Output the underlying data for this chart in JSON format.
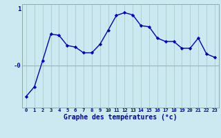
{
  "x": [
    0,
    1,
    2,
    3,
    4,
    5,
    6,
    7,
    8,
    9,
    10,
    11,
    12,
    13,
    14,
    15,
    16,
    17,
    18,
    19,
    20,
    21,
    22,
    23
  ],
  "y": [
    -0.55,
    -0.38,
    0.08,
    0.55,
    0.53,
    0.35,
    0.32,
    0.22,
    0.22,
    0.37,
    0.62,
    0.88,
    0.93,
    0.89,
    0.7,
    0.68,
    0.48,
    0.42,
    0.42,
    0.3,
    0.3,
    0.48,
    0.2,
    0.14
  ],
  "xlabel": "Graphe des températures (°c)",
  "line_color": "#0000bb",
  "marker": "D",
  "marker_size": 2.2,
  "bg_color": "#cce8f0",
  "grid_color": "#aacccc",
  "hline_color": "#dd9999",
  "hline_y": 0,
  "ylim": [
    -0.75,
    1.08
  ],
  "xlim": [
    -0.5,
    23.5
  ],
  "ytick_positions": [
    1.0,
    0.0
  ],
  "ytick_labels": [
    "1",
    "-0"
  ],
  "label_color": "#0000aa",
  "label_fontsize": 6.5,
  "xlabel_fontsize": 7.0
}
